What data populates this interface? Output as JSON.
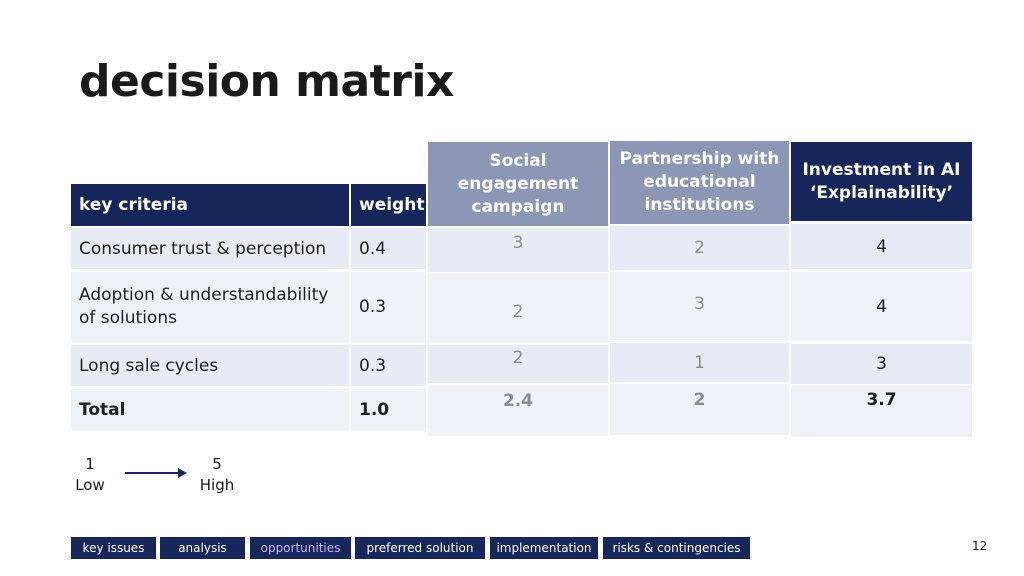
{
  "title": "decision matrix",
  "table": {
    "criteria_header": "key criteria",
    "weight_header": "weight",
    "options": [
      {
        "label": "Social engagement campaign"
      },
      {
        "label": "Partnership with educational institutions"
      },
      {
        "label": "Investment in AI ‘Explainability’"
      }
    ],
    "rows": [
      {
        "criterion": "Consumer trust & perception",
        "weight": "0.4",
        "scores": [
          "3",
          "2",
          "4"
        ]
      },
      {
        "criterion": "Adoption & understandability of solutions",
        "weight": "0.3",
        "scores": [
          "2",
          "3",
          "4"
        ]
      },
      {
        "criterion": "Long sale cycles",
        "weight": "0.3",
        "scores": [
          "2",
          "1",
          "3"
        ]
      }
    ],
    "total": {
      "label": "Total",
      "weight": "1.0",
      "scores": [
        "2.4",
        "2",
        "3.7"
      ]
    }
  },
  "legend": {
    "low_value": "1",
    "low_label": "Low",
    "high_value": "5",
    "high_label": "High"
  },
  "nav": {
    "items": [
      "key issues",
      "analysis",
      "opportunities",
      "preferred solution",
      "implementation",
      "risks & contingencies"
    ],
    "active": "opportunities"
  },
  "page_number": "12"
}
